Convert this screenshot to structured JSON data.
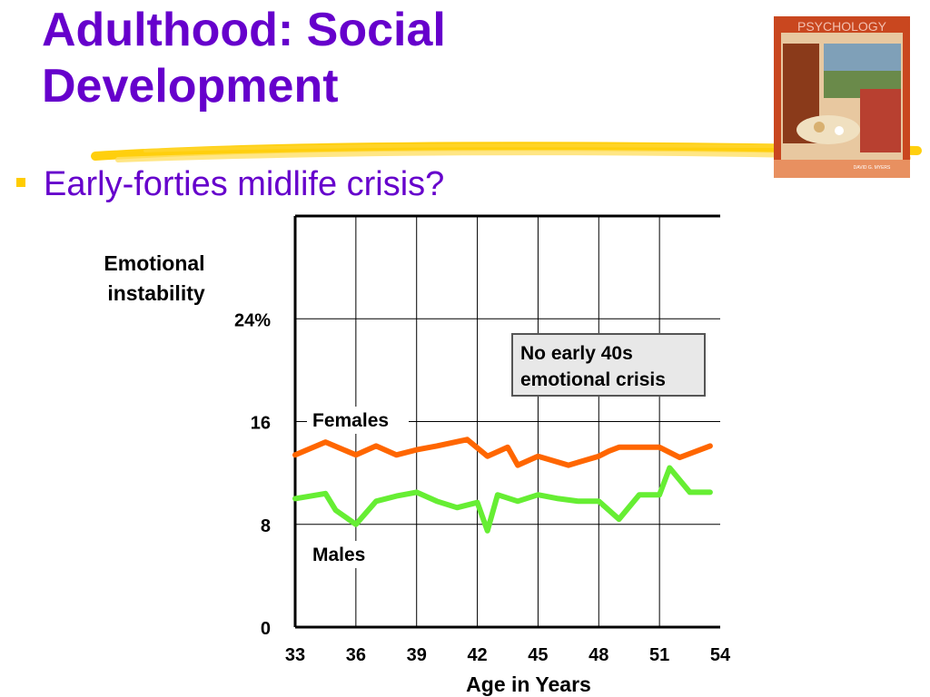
{
  "slide": {
    "title_line1": "Adulthood: Social",
    "title_line2": "Development",
    "bullet": "Early-forties midlife crisis?"
  },
  "book": {
    "cover_text": "PSYCHOLOGY",
    "author": "DAVID G. MYERS"
  },
  "colors": {
    "title": "#6600cc",
    "bullet_marker": "#ffcc00",
    "females_line": "#ff6600",
    "males_line": "#66ee33"
  },
  "chart_data": {
    "type": "line",
    "ylabel_line1": "Emotional",
    "ylabel_line2": "instability",
    "xlabel": "Age in Years",
    "x_ticks": [
      "33",
      "36",
      "39",
      "42",
      "45",
      "48",
      "51",
      "54"
    ],
    "y_ticks": [
      {
        "value": 0,
        "label": "0"
      },
      {
        "value": 8,
        "label": "8"
      },
      {
        "value": 16,
        "label": "16"
      },
      {
        "value": 24,
        "label": "24%"
      }
    ],
    "xlim": [
      33,
      54
    ],
    "ylim": [
      0,
      32
    ],
    "grid": true,
    "series": [
      {
        "name": "Females",
        "x": [
          33,
          34.5,
          36,
          37,
          38,
          39,
          40,
          41.5,
          42.5,
          43.5,
          44,
          45,
          46.5,
          48,
          48.5,
          49,
          50,
          51,
          52,
          53.5
        ],
        "y": [
          13.4,
          14.4,
          13.4,
          14.1,
          13.4,
          13.8,
          14.1,
          14.6,
          13.3,
          14.0,
          12.6,
          13.3,
          12.6,
          13.3,
          13.7,
          14.0,
          14.0,
          14.0,
          13.2,
          14.1
        ]
      },
      {
        "name": "Males",
        "x": [
          33,
          34.5,
          35,
          36,
          37,
          38,
          39,
          40,
          41,
          42,
          42.5,
          43,
          44,
          45,
          46,
          47,
          48,
          49,
          50,
          51,
          51.5,
          52.5,
          53.5
        ],
        "y": [
          10.0,
          10.4,
          9.1,
          8.0,
          9.8,
          10.2,
          10.5,
          9.8,
          9.3,
          9.7,
          7.5,
          10.3,
          9.8,
          10.3,
          10.0,
          9.8,
          9.8,
          8.4,
          10.3,
          10.3,
          12.4,
          10.5,
          10.5
        ]
      }
    ],
    "annotation_line1": "No early 40s",
    "annotation_line2": "emotional crisis"
  }
}
